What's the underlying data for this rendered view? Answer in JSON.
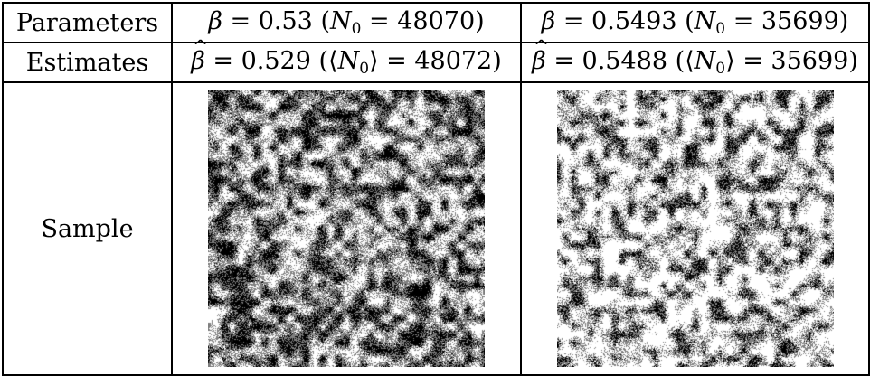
{
  "rows": {
    "parameters": {
      "label": "Parameters",
      "col1": {
        "beta_symbol": "β",
        "eq": " = 0.53 (",
        "n_symbol": "N",
        "n_sub": "0",
        "rest": " = 48070)"
      },
      "col2": {
        "beta_symbol": "β",
        "eq": " = 0.5493 (",
        "n_symbol": "N",
        "n_sub": "0",
        "rest": " = 35699)"
      }
    },
    "estimates": {
      "label": "Estimates",
      "col1": {
        "beta_symbol": "β",
        "eq": " = 0.529 (⟨",
        "n_symbol": "N",
        "n_sub": "0",
        "rest": "⟩ = 48072)"
      },
      "col2": {
        "beta_symbol": "β",
        "eq": " = 0.5488 (⟨",
        "n_symbol": "N",
        "n_sub": "0",
        "rest": "⟩ = 35699)"
      }
    },
    "sample": {
      "label": "Sample"
    }
  },
  "samples": [
    {
      "seed": 11,
      "colors": [
        "#000000",
        "#808080",
        "#ffffff"
      ],
      "weights": [
        0.33,
        0.33,
        0.34
      ]
    },
    {
      "seed": 23,
      "colors": [
        "#000000",
        "#808080",
        "#ffffff"
      ],
      "weights": [
        0.2,
        0.28,
        0.52
      ]
    }
  ]
}
